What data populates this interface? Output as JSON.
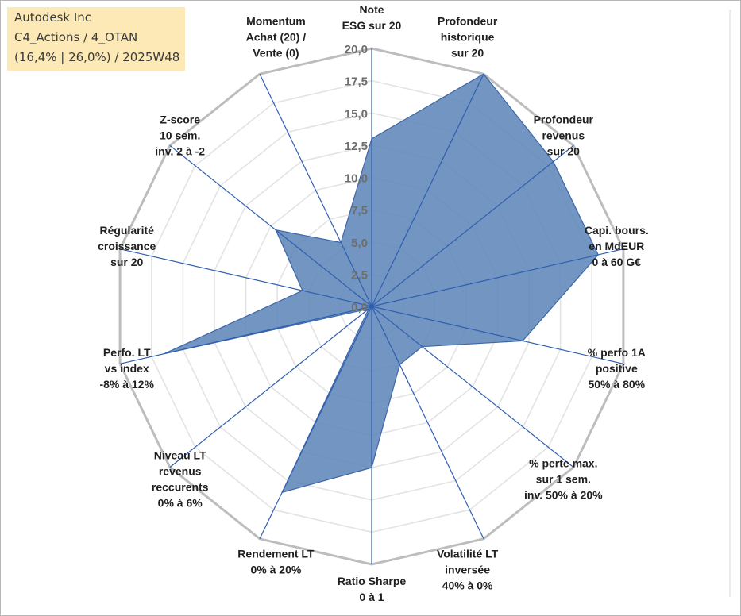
{
  "header": {
    "company": "Autodesk Inc",
    "category": "C4_Actions / 4_OTAN",
    "stats": "(16,4% | 26,0%) / 2025W48"
  },
  "colors": {
    "fill": "#5f86b8",
    "stroke": "#3e67a8",
    "spoke": "#2f5fb0",
    "outer_grid": "#bdbdbd",
    "inner_grid": "#e3e3e3",
    "box": "#fde9b6"
  },
  "chart_data": {
    "type": "radar",
    "title": "",
    "rmin": 0,
    "rmax": 20,
    "ticks": [
      "0,0",
      "2,5",
      "5,0",
      "7,5",
      "10,0",
      "12,5",
      "15,0",
      "17,5",
      "20,0"
    ],
    "tick_values": [
      0,
      2.5,
      5,
      7.5,
      10,
      12.5,
      15,
      17.5,
      20
    ],
    "axes": [
      [
        "Note",
        "ESG sur 20"
      ],
      [
        "Profondeur",
        "historique",
        "sur 20"
      ],
      [
        "Profondeur",
        "revenus",
        "sur 20"
      ],
      [
        "Capi. bours.",
        "en MdEUR",
        "0 à 60 G€"
      ],
      [
        "% perfo 1A",
        "positive",
        "50% à 80%"
      ],
      [
        "% perte max.",
        "sur 1 sem.",
        "inv. 50% à 20%"
      ],
      [
        "Volatilité LT",
        "inversée",
        "40% à 0%"
      ],
      [
        "Ratio Sharpe",
        "0 à 1"
      ],
      [
        "Rendement LT",
        "0% à 20%"
      ],
      [
        "Niveau LT",
        "revenus",
        "reccurents",
        "0% à 6%"
      ],
      [
        "Perfo. LT",
        "vs index",
        "-8% à 12%"
      ],
      [
        "Régularité",
        "croissance",
        "sur 20"
      ],
      [
        "Z-score",
        "10 sem.",
        "inv. 2 à -2"
      ],
      [
        "Momentum",
        "Achat (20) /",
        "Vente (0)"
      ]
    ],
    "series": [
      {
        "name": "Autodesk Inc",
        "values": [
          13,
          20,
          18,
          18,
          12,
          5,
          5,
          12.5,
          16,
          0.3,
          16.5,
          5.5,
          9.5,
          5.5
        ]
      }
    ]
  }
}
